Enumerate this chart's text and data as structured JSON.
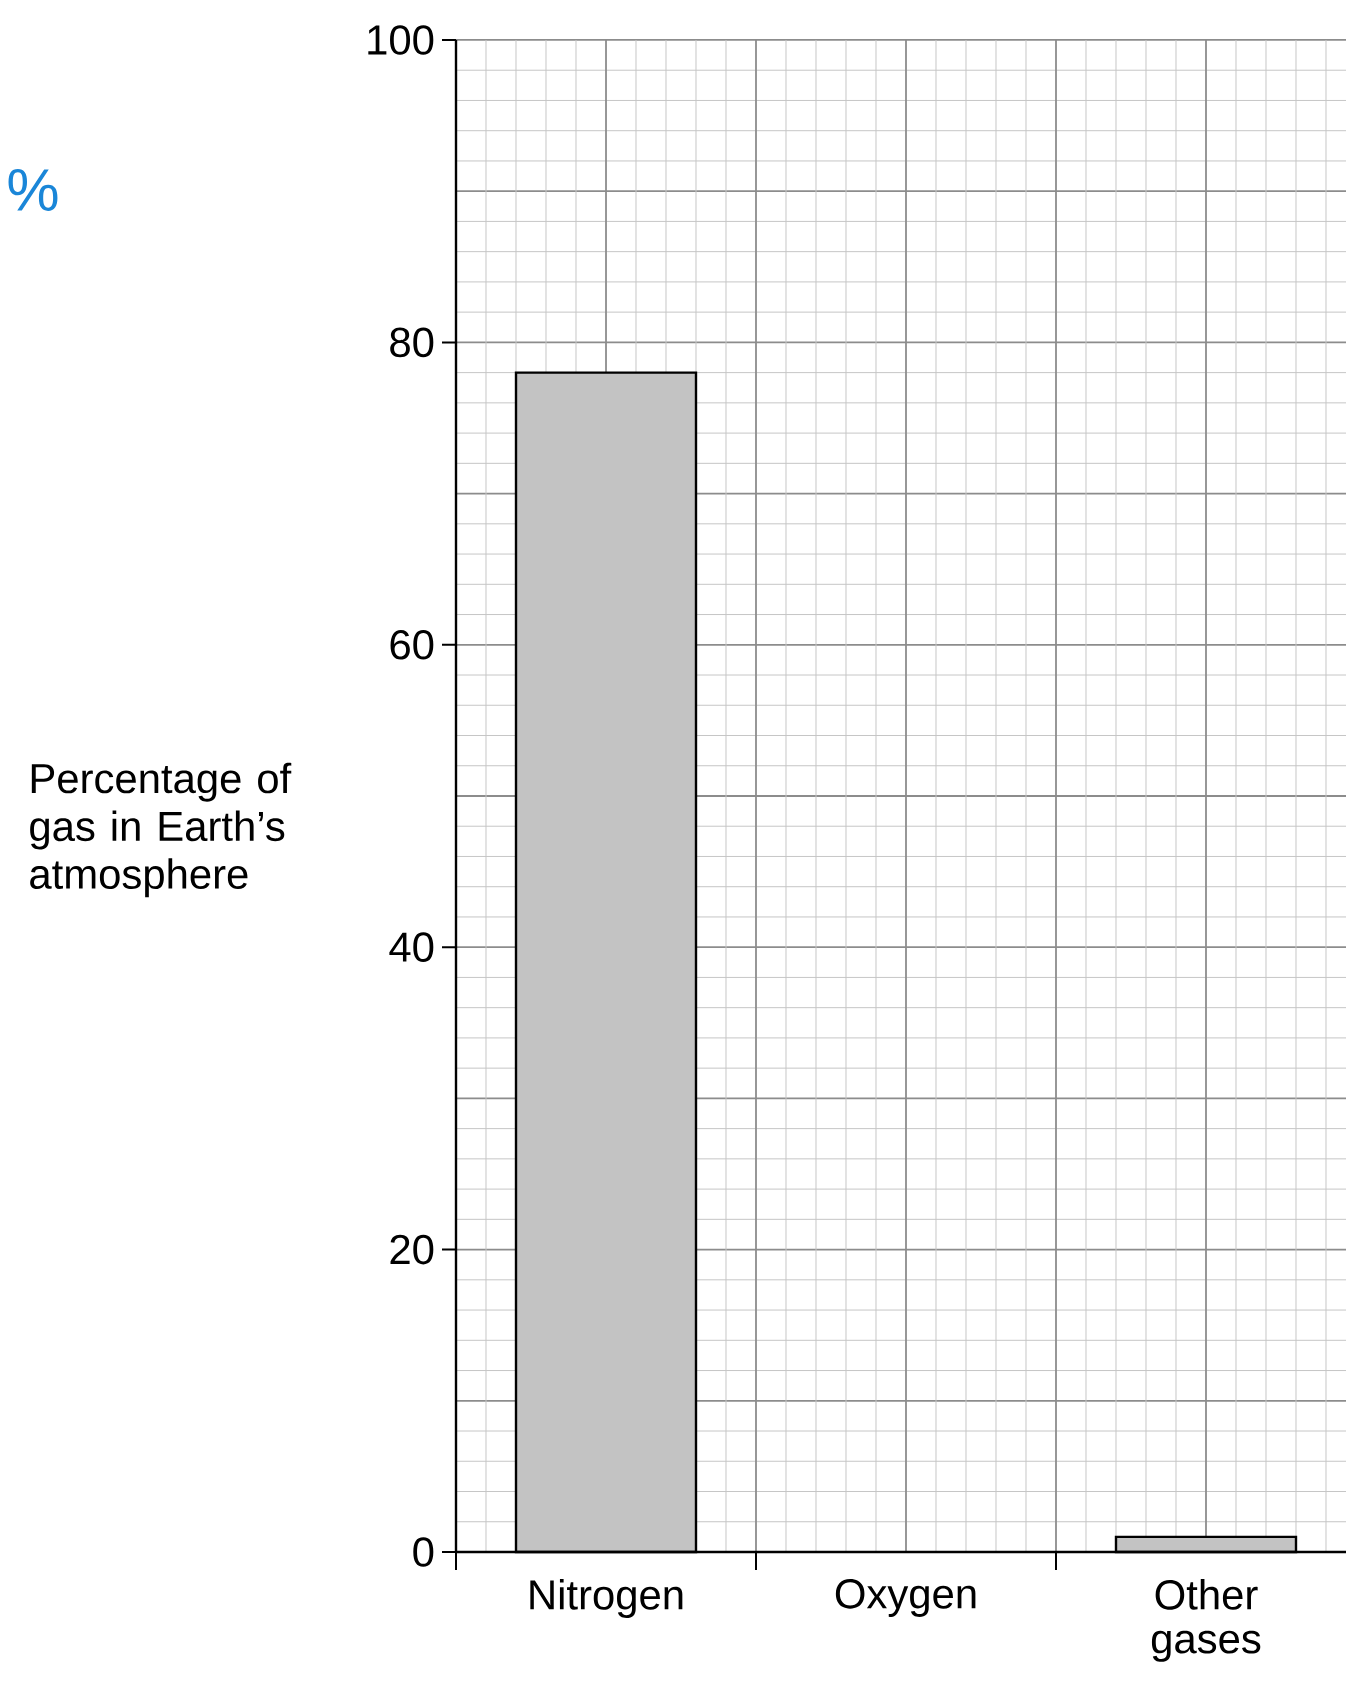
{
  "chart_data": {
    "type": "bar",
    "ylabel": "Percentage of gas in Earth’s atmosphere",
    "categories": [
      "Nitrogen",
      "Oxygen",
      "Other gases"
    ],
    "values": [
      78,
      null,
      1
    ],
    "color": "#c3c3c3",
    "ylim": [
      0,
      100
    ],
    "yticks": [
      0,
      20,
      40,
      60,
      80,
      100
    ],
    "grid": true,
    "annotations": [
      "%"
    ]
  }
}
